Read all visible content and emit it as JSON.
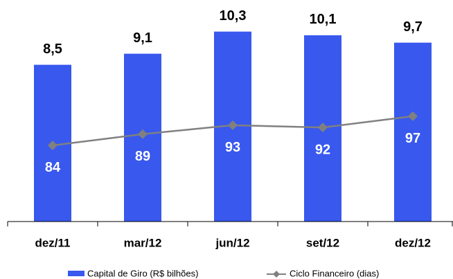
{
  "chart_data": {
    "type": "bar-line",
    "categories": [
      "dez/11",
      "mar/12",
      "jun/12",
      "set/12",
      "dez/12"
    ],
    "series": [
      {
        "name": "Capital de Giro (R$ bilhões)",
        "type": "bar",
        "color": "#3858ee",
        "values": [
          8.5,
          9.1,
          10.3,
          10.1,
          9.7
        ],
        "value_labels": [
          "8,5",
          "9,1",
          "10,3",
          "10,1",
          "9,7"
        ]
      },
      {
        "name": "Ciclo Financeiro (dias)",
        "type": "line",
        "axis": "y2",
        "color": "#808080",
        "values": [
          84,
          89,
          93,
          92,
          97
        ]
      }
    ],
    "ylim": [
      0,
      11.3
    ],
    "y2lim": [
      50,
      143
    ]
  }
}
